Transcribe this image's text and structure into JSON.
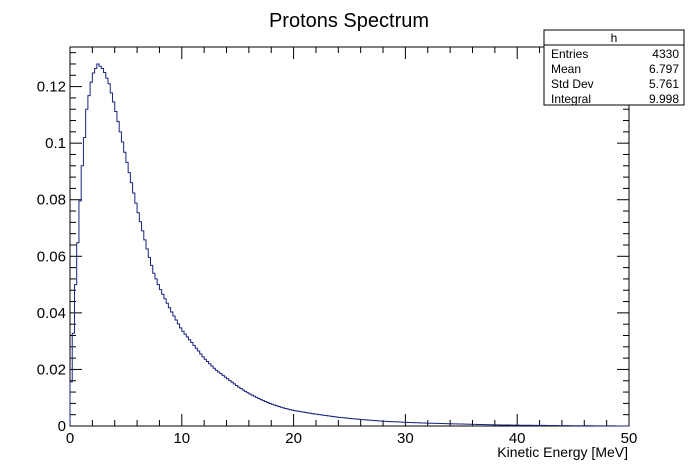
{
  "chart_data": {
    "type": "histogram",
    "title": "Protons Spectrum",
    "xlabel": "Kinetic Energy [MeV]",
    "ylabel": "",
    "xlim": [
      0,
      50
    ],
    "ylim": [
      0,
      0.134
    ],
    "xticks": [
      0,
      10,
      20,
      30,
      40,
      50
    ],
    "xtick_labels": [
      "0",
      "10",
      "20",
      "30",
      "40",
      "50"
    ],
    "yticks": [
      0,
      0.02,
      0.04,
      0.06,
      0.08,
      0.1,
      0.12
    ],
    "ytick_labels": [
      "0",
      "0.02",
      "0.04",
      "0.06",
      "0.08",
      "0.1",
      "0.12"
    ],
    "grid": false,
    "line_color": "#1a237e",
    "series": [
      {
        "x": [
          0,
          0.5,
          1,
          1.5,
          2,
          2.5,
          3,
          3.5,
          4,
          4.5,
          5,
          5.5,
          6,
          6.5,
          7,
          7.5,
          8,
          9,
          10,
          11,
          12,
          13,
          14,
          15,
          16,
          17,
          18,
          19,
          20,
          22,
          24,
          26,
          28,
          30,
          32,
          34,
          36,
          38,
          40,
          45,
          50
        ],
        "y": [
          0.007,
          0.05,
          0.087,
          0.112,
          0.124,
          0.128,
          0.126,
          0.121,
          0.113,
          0.104,
          0.095,
          0.086,
          0.077,
          0.069,
          0.061,
          0.054,
          0.049,
          0.041,
          0.034,
          0.029,
          0.024,
          0.02,
          0.017,
          0.014,
          0.0115,
          0.0095,
          0.0078,
          0.0065,
          0.0055,
          0.0042,
          0.0031,
          0.0023,
          0.0017,
          0.0013,
          0.001,
          0.0008,
          0.0006,
          0.0004,
          0.0003,
          0.0001,
          0
        ]
      }
    ],
    "stats_box": {
      "name": "h",
      "rows": [
        {
          "label": "Entries",
          "value": "4330"
        },
        {
          "label": "Mean",
          "value": "6.797"
        },
        {
          "label": "Std Dev",
          "value": "5.761"
        },
        {
          "label": "Integral",
          "value": "9.998"
        }
      ]
    }
  }
}
